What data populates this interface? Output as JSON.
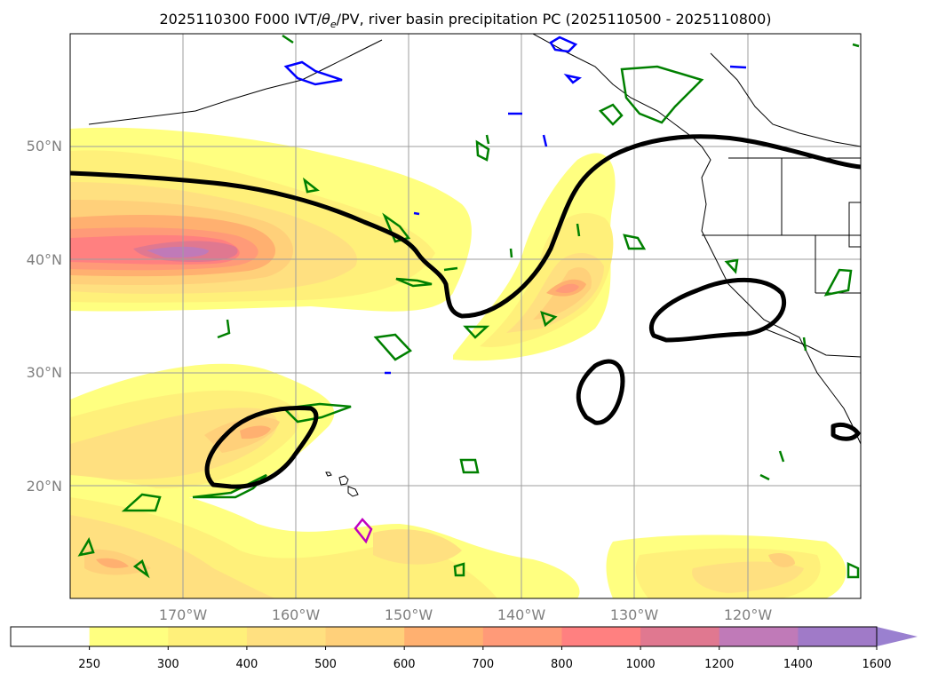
{
  "title": {
    "prefix": "2025110300 F000 IVT/",
    "theta": "θ",
    "sub": "e",
    "suffix": "/PV, river basin precipitation PC (2025110500 - 2025110800)"
  },
  "lat_labels": [
    "50°N",
    "40°N",
    "30°N",
    "20°N"
  ],
  "lon_labels": [
    "170°W",
    "160°W",
    "150°W",
    "140°W",
    "130°W",
    "120°W"
  ],
  "colorbar": {
    "ticks": [
      "250",
      "300",
      "400",
      "500",
      "600",
      "700",
      "800",
      "1000",
      "1200",
      "1400",
      "1600"
    ],
    "colors": [
      "#ffffff",
      "#ffff80",
      "#fff07a",
      "#ffe080",
      "#ffd07a",
      "#ffb070",
      "#ff9a78",
      "#ff8080",
      "#e07890",
      "#c07ab8",
      "#a07ac8",
      "#9a80d0"
    ],
    "extend": "max"
  },
  "map": {
    "lon_range": [
      -180,
      -110
    ],
    "lat_range": [
      10,
      60
    ],
    "contour_colors": {
      "ivt_contour": "#000000",
      "green": "#008000",
      "blue": "#0000ff",
      "magenta": "#c000c0"
    }
  }
}
